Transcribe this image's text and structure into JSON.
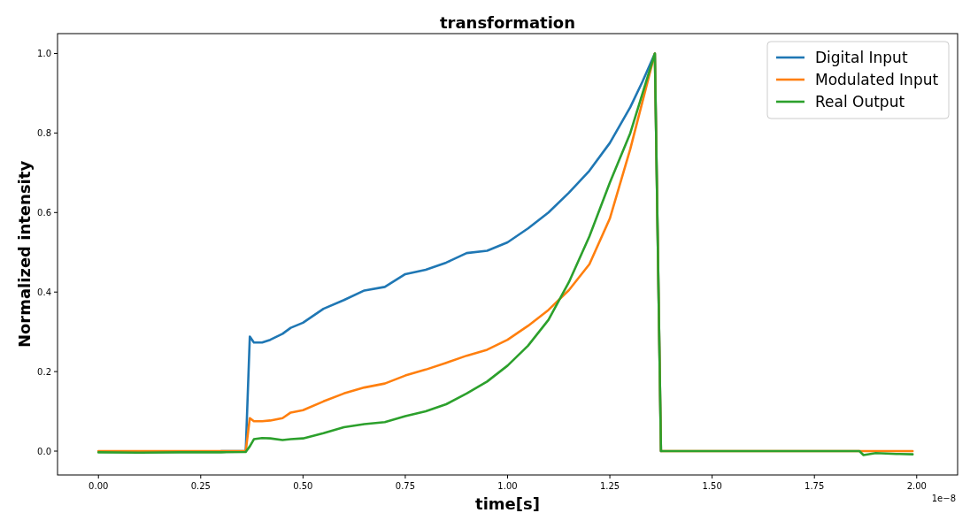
{
  "chart_data": {
    "type": "line",
    "title": "transformation",
    "xlabel": "time[s]",
    "ylabel": "Normalized intensity",
    "annotations": [
      "1e−8"
    ],
    "x": [
      0,
      0.1,
      0.2,
      0.3,
      0.36,
      0.37,
      0.38,
      0.4,
      0.42,
      0.45,
      0.47,
      0.5,
      0.55,
      0.6,
      0.65,
      0.7,
      0.75,
      0.8,
      0.85,
      0.9,
      0.95,
      1.0,
      1.05,
      1.1,
      1.15,
      1.2,
      1.25,
      1.3,
      1.33,
      1.36,
      1.375,
      1.86,
      1.87,
      1.9,
      1.95,
      1.99
    ],
    "series": [
      {
        "name": "Digital Input",
        "color": "#1f77b4",
        "values": [
          null,
          null,
          null,
          0,
          0,
          0.288,
          0.273,
          0.273,
          0.28,
          0.295,
          0.31,
          0.323,
          0.358,
          0.38,
          0.404,
          0.413,
          0.445,
          0.456,
          0.474,
          0.498,
          0.504,
          0.525,
          0.56,
          0.6,
          0.65,
          0.705,
          0.775,
          0.865,
          0.93,
          1.0,
          0,
          null,
          null,
          null,
          null,
          null
        ]
      },
      {
        "name": "Modulated Input",
        "color": "#ff7f0e",
        "values": [
          0,
          0,
          0,
          0,
          0,
          0.083,
          0.075,
          0.075,
          0.077,
          0.083,
          0.097,
          0.103,
          0.125,
          0.145,
          0.16,
          0.17,
          0.19,
          0.205,
          0.222,
          0.24,
          0.255,
          0.28,
          0.315,
          0.355,
          0.405,
          0.47,
          0.585,
          0.76,
          0.88,
          1.0,
          0,
          0,
          0,
          0,
          0,
          0
        ]
      },
      {
        "name": "Real Output",
        "color": "#2ca02c",
        "values": [
          -0.003,
          -0.004,
          -0.003,
          -0.003,
          -0.002,
          0.012,
          0.03,
          0.033,
          0.032,
          0.028,
          0.03,
          0.032,
          0.045,
          0.06,
          0.068,
          0.073,
          0.088,
          0.1,
          0.118,
          0.145,
          0.175,
          0.215,
          0.265,
          0.33,
          0.425,
          0.54,
          0.675,
          0.8,
          0.9,
          1.0,
          0,
          0,
          -0.01,
          -0.005,
          -0.007,
          -0.008
        ]
      }
    ],
    "xlim": [
      -0.1,
      2.1
    ],
    "ylim": [
      -0.06,
      1.05
    ],
    "xticks": [
      {
        "value": 0,
        "label": "0.00"
      },
      0.25,
      {
        "value": 0.5,
        "label": "0.50"
      },
      0.75,
      {
        "value": 1,
        "label": "1.00"
      },
      1.25,
      {
        "value": 1.5,
        "label": "1.50"
      },
      1.75,
      {
        "value": 2,
        "label": "2.00"
      }
    ],
    "yticks": [
      {
        "value": 0,
        "label": "0.0"
      },
      0.2,
      0.4,
      0.6,
      0.8,
      {
        "value": 1,
        "label": "1.0"
      }
    ],
    "grid": false,
    "legend": "top right",
    "line_style": "solid",
    "marker": "none"
  }
}
